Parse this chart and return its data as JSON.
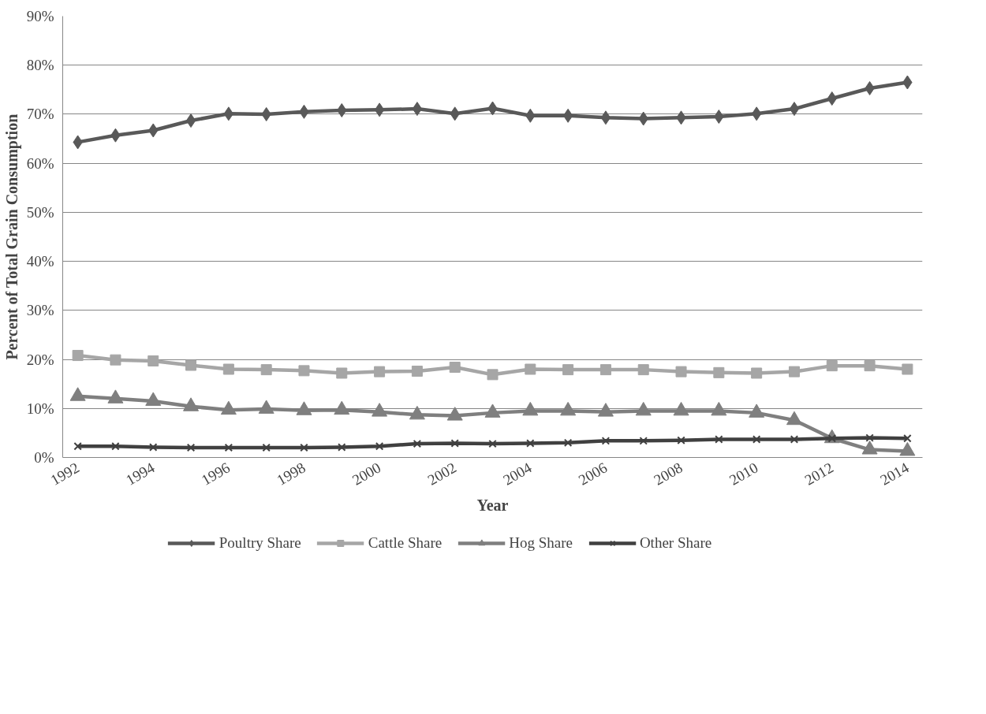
{
  "chart_data": {
    "type": "line",
    "xlabel": "Year",
    "ylabel": "Percent of Total Grain Consumption",
    "x": [
      1992,
      1993,
      1994,
      1995,
      1996,
      1997,
      1998,
      1999,
      2000,
      2001,
      2002,
      2003,
      2004,
      2005,
      2006,
      2007,
      2008,
      2009,
      2010,
      2011,
      2012,
      2013,
      2014
    ],
    "series": [
      {
        "name": "Poultry Share",
        "color": "#595959",
        "marker": "diamond",
        "values": [
          64.3,
          65.7,
          66.7,
          68.7,
          70.1,
          70.0,
          70.5,
          70.8,
          70.9,
          71.1,
          70.1,
          71.2,
          69.7,
          69.7,
          69.3,
          69.1,
          69.3,
          69.5,
          70.1,
          71.1,
          73.2,
          75.3,
          76.5
        ]
      },
      {
        "name": "Cattle Share",
        "color": "#a6a6a6",
        "marker": "square",
        "values": [
          20.8,
          19.9,
          19.7,
          18.8,
          18.0,
          17.9,
          17.7,
          17.2,
          17.5,
          17.6,
          18.4,
          16.9,
          18.0,
          17.9,
          17.9,
          17.9,
          17.5,
          17.3,
          17.2,
          17.5,
          18.7,
          18.7,
          18.0
        ]
      },
      {
        "name": "Hog Share",
        "color": "#7f7f7f",
        "marker": "triangle",
        "values": [
          12.5,
          12.0,
          11.5,
          10.4,
          9.7,
          9.9,
          9.6,
          9.7,
          9.3,
          8.7,
          8.5,
          9.1,
          9.5,
          9.5,
          9.3,
          9.5,
          9.5,
          9.5,
          9.1,
          7.6,
          3.9,
          1.6,
          1.3
        ]
      },
      {
        "name": "Other Share",
        "color": "#404040",
        "marker": "cross",
        "values": [
          2.3,
          2.3,
          2.1,
          2.0,
          2.0,
          2.0,
          2.0,
          2.1,
          2.3,
          2.8,
          2.9,
          2.8,
          2.9,
          3.0,
          3.4,
          3.4,
          3.5,
          3.7,
          3.7,
          3.7,
          3.9,
          4.0,
          3.9
        ]
      }
    ],
    "xlim": [
      1991.6,
      2014.4
    ],
    "xticks": [
      1992,
      1994,
      1996,
      1998,
      2000,
      2002,
      2004,
      2006,
      2008,
      2010,
      2012,
      2014
    ],
    "ylim": [
      0,
      90
    ],
    "yticks": [
      {
        "value": 0,
        "label": "0%"
      },
      {
        "value": 10,
        "label": "10%"
      },
      {
        "value": 20,
        "label": "20%"
      },
      {
        "value": 30,
        "label": "30%"
      },
      {
        "value": 40,
        "label": "40%"
      },
      {
        "value": 50,
        "label": "50%"
      },
      {
        "value": 60,
        "label": "60%"
      },
      {
        "value": 70,
        "label": "70%"
      },
      {
        "value": 80,
        "label": "80%"
      },
      {
        "value": 90,
        "label": "90%"
      }
    ],
    "grid": "y",
    "legend": "bottom",
    "line_style": "solid"
  }
}
